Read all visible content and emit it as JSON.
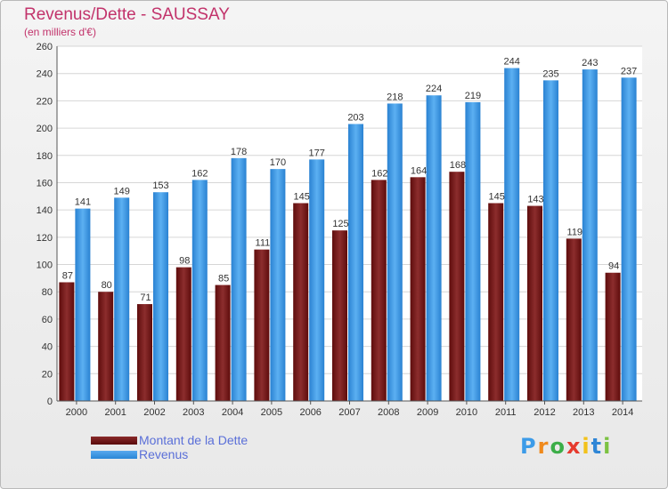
{
  "title": "Revenus/Dette - SAUSSAY",
  "subtitle": "(en milliers d'€)",
  "logo": {
    "letters": [
      "P",
      "r",
      "o",
      "x",
      "i",
      "t",
      "i"
    ],
    "colors": [
      "#3c9be8",
      "#f08a1c",
      "#3cae48",
      "#e63a2e",
      "#f2c21b",
      "#2f86d6",
      "#7cc242"
    ]
  },
  "colors": {
    "debt": "#7a1a1a",
    "revenue": "#3a95e4",
    "title": "#c2336b",
    "legend_text": "#5a6fd8"
  },
  "chart_data": {
    "type": "bar",
    "categories": [
      "2000",
      "2001",
      "2002",
      "2003",
      "2004",
      "2005",
      "2006",
      "2007",
      "2008",
      "2009",
      "2010",
      "2011",
      "2012",
      "2013",
      "2014"
    ],
    "series": [
      {
        "name": "Montant de la Dette",
        "values": [
          87,
          80,
          71,
          98,
          85,
          111,
          145,
          125,
          162,
          164,
          168,
          145,
          143,
          119,
          94
        ]
      },
      {
        "name": "Revenus",
        "values": [
          141,
          149,
          153,
          162,
          178,
          170,
          177,
          203,
          218,
          224,
          219,
          244,
          235,
          243,
          237
        ]
      }
    ],
    "ylim": [
      0,
      260
    ],
    "yticks": [
      0,
      20,
      40,
      60,
      80,
      100,
      120,
      140,
      160,
      180,
      200,
      220,
      240,
      260
    ],
    "grid": true,
    "legend_position": "bottom-left"
  }
}
